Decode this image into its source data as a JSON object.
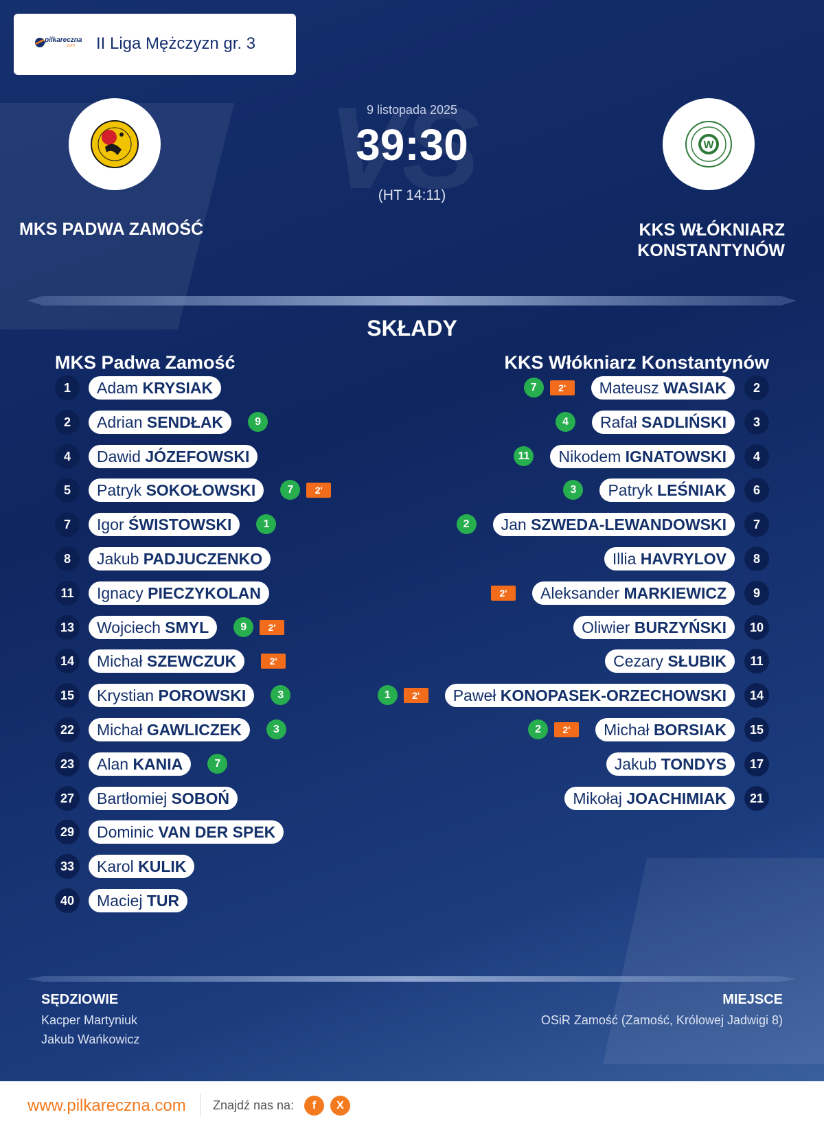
{
  "league": {
    "name": "II Liga Mężczyzn gr. 3",
    "logo_text": "pilkareczna",
    "logo_suffix": ".com"
  },
  "match": {
    "date": "9 listopada 2025",
    "score": "39:30",
    "halftime": "(HT 14:11)",
    "vs": "VS",
    "home_name": "MKS PADWA ZAMOŚĆ",
    "away_name_line1": "KKS WŁÓKNIARZ",
    "away_name_line2": "KONSTANTYNÓW"
  },
  "lineups": {
    "title": "SKŁADY",
    "home_title": "MKS Padwa Zamość",
    "away_title": "KKS Włókniarz Konstantynów",
    "home": [
      {
        "no": "1",
        "first": "Adam",
        "last": "KRYSIAK",
        "goals": "",
        "pen": ""
      },
      {
        "no": "2",
        "first": "Adrian",
        "last": "SENDŁAK",
        "goals": "9",
        "pen": ""
      },
      {
        "no": "4",
        "first": "Dawid",
        "last": "JÓZEFOWSKI",
        "goals": "",
        "pen": ""
      },
      {
        "no": "5",
        "first": "Patryk",
        "last": "SOKOŁOWSKI",
        "goals": "7",
        "pen": "2'"
      },
      {
        "no": "7",
        "first": "Igor",
        "last": "ŚWISTOWSKI",
        "goals": "1",
        "pen": ""
      },
      {
        "no": "8",
        "first": "Jakub",
        "last": "PADJUCZENKO",
        "goals": "",
        "pen": ""
      },
      {
        "no": "11",
        "first": "Ignacy",
        "last": "PIECZYKOLAN",
        "goals": "",
        "pen": ""
      },
      {
        "no": "13",
        "first": "Wojciech",
        "last": "SMYL",
        "goals": "9",
        "pen": "2'"
      },
      {
        "no": "14",
        "first": "Michał",
        "last": "SZEWCZUK",
        "goals": "",
        "pen": "2'"
      },
      {
        "no": "15",
        "first": "Krystian",
        "last": "POROWSKI",
        "goals": "3",
        "pen": ""
      },
      {
        "no": "22",
        "first": "Michał",
        "last": "GAWLICZEK",
        "goals": "3",
        "pen": ""
      },
      {
        "no": "23",
        "first": "Alan",
        "last": "KANIA",
        "goals": "7",
        "pen": ""
      },
      {
        "no": "27",
        "first": "Bartłomiej",
        "last": "SOBOŃ",
        "goals": "",
        "pen": ""
      },
      {
        "no": "29",
        "first": "Dominic",
        "last": "VAN DER SPEK",
        "goals": "",
        "pen": ""
      },
      {
        "no": "33",
        "first": "Karol",
        "last": "KULIK",
        "goals": "",
        "pen": ""
      },
      {
        "no": "40",
        "first": "Maciej",
        "last": "TUR",
        "goals": "",
        "pen": ""
      }
    ],
    "away": [
      {
        "no": "2",
        "first": "Mateusz",
        "last": "WASIAK",
        "goals": "7",
        "pen": "2'"
      },
      {
        "no": "3",
        "first": "Rafał",
        "last": "SADLIŃSKI",
        "goals": "4",
        "pen": ""
      },
      {
        "no": "4",
        "first": "Nikodem",
        "last": "IGNATOWSKI",
        "goals": "11",
        "pen": ""
      },
      {
        "no": "6",
        "first": "Patryk",
        "last": "LEŚNIAK",
        "goals": "3",
        "pen": ""
      },
      {
        "no": "7",
        "first": "Jan",
        "last": "SZWEDA-LEWANDOWSKI",
        "goals": "2",
        "pen": ""
      },
      {
        "no": "8",
        "first": "Illia",
        "last": "HAVRYLOV",
        "goals": "",
        "pen": ""
      },
      {
        "no": "9",
        "first": "Aleksander",
        "last": "MARKIEWICZ",
        "goals": "",
        "pen": "2'"
      },
      {
        "no": "10",
        "first": "Oliwier",
        "last": "BURZYŃSKI",
        "goals": "",
        "pen": ""
      },
      {
        "no": "11",
        "first": "Cezary",
        "last": "SŁUBIK",
        "goals": "",
        "pen": ""
      },
      {
        "no": "14",
        "first": "Paweł",
        "last": "KONOPASEK-ORZECHOWSKI",
        "goals": "1",
        "pen": "2'"
      },
      {
        "no": "15",
        "first": "Michał",
        "last": "BORSIAK",
        "goals": "2",
        "pen": "2'"
      },
      {
        "no": "17",
        "first": "Jakub",
        "last": "TONDYS",
        "goals": "",
        "pen": ""
      },
      {
        "no": "21",
        "first": "Mikołaj",
        "last": "JOACHIMIAK",
        "goals": "",
        "pen": ""
      }
    ]
  },
  "officials": {
    "referees_title": "SĘDZIOWIE",
    "referees": [
      "Kacper Martyniuk",
      "Jakub Wańkowicz"
    ],
    "venue_title": "MIEJSCE",
    "venue": "OSiR Zamość (Zamość, Królowej Jadwigi 8)"
  },
  "footer": {
    "site": "www.pilkareczna.com",
    "find_us": "Znajdź nas na:",
    "social": [
      "f",
      "X"
    ]
  },
  "colors": {
    "background": "#15306e",
    "goals": "#27ae4f",
    "penalty": "#f26c1b",
    "accent": "#f47a1f"
  },
  "icons": {
    "home_crest": "mks-padwa-crest",
    "away_crest": "kks-wlokniarz-crest",
    "facebook": "facebook-icon",
    "x": "x-icon"
  }
}
